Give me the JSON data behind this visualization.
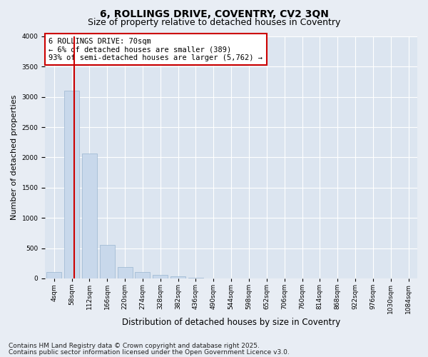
{
  "title_line1": "6, ROLLINGS DRIVE, COVENTRY, CV2 3QN",
  "title_line2": "Size of property relative to detached houses in Coventry",
  "xlabel": "Distribution of detached houses by size in Coventry",
  "ylabel": "Number of detached properties",
  "bar_color": "#c8d8eb",
  "bar_edge_color": "#9ab5d0",
  "bin_labels": [
    "4sqm",
    "58sqm",
    "112sqm",
    "166sqm",
    "220sqm",
    "274sqm",
    "328sqm",
    "382sqm",
    "436sqm",
    "490sqm",
    "544sqm",
    "598sqm",
    "652sqm",
    "706sqm",
    "760sqm",
    "814sqm",
    "868sqm",
    "922sqm",
    "976sqm",
    "1030sqm",
    "1084sqm"
  ],
  "values": [
    100,
    3100,
    2070,
    550,
    190,
    100,
    55,
    38,
    15,
    0,
    0,
    0,
    0,
    0,
    0,
    0,
    0,
    0,
    0,
    0
  ],
  "ylim": [
    0,
    4000
  ],
  "yticks": [
    0,
    500,
    1000,
    1500,
    2000,
    2500,
    3000,
    3500,
    4000
  ],
  "property_bin_index": 1.15,
  "red_line_color": "#cc0000",
  "annotation_text": "6 ROLLINGS DRIVE: 70sqm\n← 6% of detached houses are smaller (389)\n93% of semi-detached houses are larger (5,762) →",
  "annotation_box_color": "#ffffff",
  "annotation_border_color": "#cc0000",
  "background_color": "#e8edf4",
  "plot_bg_color": "#dce5f0",
  "grid_color": "#ffffff",
  "footer_line1": "Contains HM Land Registry data © Crown copyright and database right 2025.",
  "footer_line2": "Contains public sector information licensed under the Open Government Licence v3.0.",
  "title_fontsize": 10,
  "subtitle_fontsize": 9,
  "xlabel_fontsize": 8.5,
  "ylabel_fontsize": 8,
  "tick_fontsize": 6.5,
  "annotation_fontsize": 7.5,
  "footer_fontsize": 6.5
}
